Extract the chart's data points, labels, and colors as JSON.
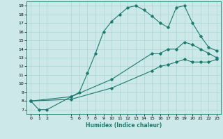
{
  "xlabel": "Humidex (Indice chaleur)",
  "bg_color": "#cce8e8",
  "grid_color": "#aad4d4",
  "line_color": "#1a7a6e",
  "xlim": [
    -0.5,
    23.5
  ],
  "ylim": [
    6.5,
    19.5
  ],
  "xticks": [
    0,
    1,
    2,
    5,
    6,
    7,
    8,
    9,
    10,
    11,
    12,
    13,
    14,
    15,
    16,
    17,
    18,
    19,
    20,
    21,
    22,
    23
  ],
  "yticks": [
    7,
    8,
    9,
    10,
    11,
    12,
    13,
    14,
    15,
    16,
    17,
    18,
    19
  ],
  "line1": {
    "x": [
      0,
      1,
      2,
      5,
      6,
      7,
      8,
      9,
      10,
      11,
      12,
      13,
      14,
      15,
      16,
      17,
      18,
      19,
      20,
      21,
      22,
      23
    ],
    "y": [
      8.0,
      7.0,
      7.0,
      8.5,
      9.0,
      11.2,
      13.5,
      16.0,
      17.2,
      18.0,
      18.8,
      19.0,
      18.5,
      17.8,
      17.0,
      16.5,
      18.8,
      19.0,
      17.0,
      15.5,
      14.2,
      13.8
    ]
  },
  "line2": {
    "x": [
      0,
      5,
      10,
      15,
      16,
      17,
      18,
      19,
      20,
      21,
      22,
      23
    ],
    "y": [
      8.0,
      8.5,
      10.5,
      13.5,
      13.5,
      14.0,
      14.0,
      14.8,
      14.5,
      14.0,
      13.5,
      13.0
    ]
  },
  "line3": {
    "x": [
      0,
      5,
      10,
      15,
      16,
      17,
      18,
      19,
      20,
      21,
      22,
      23
    ],
    "y": [
      8.0,
      8.2,
      9.5,
      11.5,
      12.0,
      12.2,
      12.5,
      12.8,
      12.5,
      12.5,
      12.5,
      12.8
    ]
  }
}
